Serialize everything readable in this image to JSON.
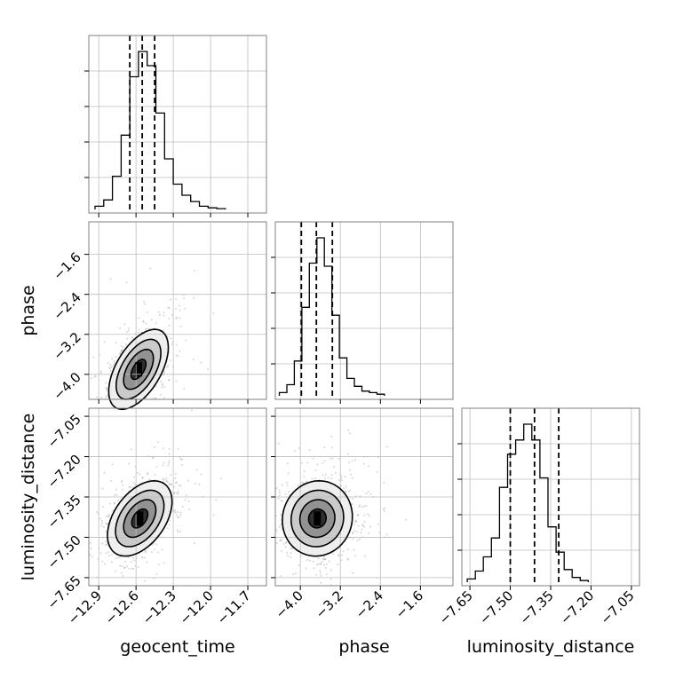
{
  "chart_data": {
    "type": "corner",
    "parameters": [
      "geocent_time",
      "phase",
      "luminosity_distance"
    ],
    "axis_labels": {
      "x": [
        "geocent_time",
        "phase",
        "luminosity_distance"
      ],
      "y": [
        "",
        "phase",
        "luminosity_distance"
      ]
    },
    "ranges": {
      "geocent_time": [
        -12.98,
        -11.55
      ],
      "phase": [
        -4.5,
        -0.95
      ],
      "luminosity_distance": [
        -7.68,
        -7.02
      ]
    },
    "ticks": {
      "geocent_time": {
        "values": [
          -12.9,
          -12.6,
          -12.3,
          -12.0,
          -11.7
        ],
        "labels": [
          "−12.9",
          "−12.6",
          "−12.3",
          "−12.0",
          "−11.7"
        ]
      },
      "phase": {
        "values": [
          -4.0,
          -3.2,
          -2.4,
          -1.6
        ],
        "labels": [
          "−4.0",
          "−3.2",
          "−2.4",
          "−1.6"
        ]
      },
      "luminosity_distance": {
        "values": [
          -7.65,
          -7.5,
          -7.35,
          -7.2,
          -7.05
        ],
        "labels": [
          "−7.65",
          "−7.50",
          "−7.35",
          "−7.20",
          "−7.05"
        ]
      }
    },
    "grid": true,
    "histograms": {
      "geocent_time": {
        "bins": [
          -12.93,
          -12.86,
          -12.79,
          -12.72,
          -12.65,
          -12.58,
          -12.51,
          -12.44,
          -12.37,
          -12.3,
          -12.23,
          -12.16,
          -12.09,
          -12.02,
          -11.95,
          -11.88
        ],
        "counts": [
          2,
          6,
          21,
          47,
          84,
          100,
          91,
          61,
          32,
          16,
          9,
          5,
          2,
          1,
          0.5
        ],
        "quantiles": [
          -12.65,
          -12.55,
          -12.45
        ]
      },
      "phase": {
        "bins": [
          -4.42,
          -4.27,
          -4.12,
          -3.97,
          -3.82,
          -3.67,
          -3.52,
          -3.37,
          -3.22,
          -3.07,
          -2.92,
          -2.77,
          -2.62,
          -2.47,
          -2.32
        ],
        "counts": [
          2,
          7,
          22,
          56,
          84,
          100,
          82,
          51,
          24,
          11,
          6,
          3,
          2,
          1
        ],
        "quantiles": [
          -3.98,
          -3.68,
          -3.36
        ]
      },
      "luminosity_distance": {
        "bins": [
          -7.66,
          -7.63,
          -7.6,
          -7.57,
          -7.54,
          -7.51,
          -7.48,
          -7.45,
          -7.42,
          -7.39,
          -7.36,
          -7.33,
          -7.3,
          -7.27,
          -7.24,
          -7.21
        ],
        "counts": [
          2,
          7,
          16,
          28,
          60,
          81,
          90,
          100,
          90,
          66,
          35,
          19,
          8,
          3,
          1
        ],
        "quantiles": [
          -7.5,
          -7.41,
          -7.32
        ]
      }
    },
    "pairs": [
      {
        "x": "geocent_time",
        "y": "phase",
        "center": [
          -12.58,
          -3.9
        ],
        "sigma": [
          0.12,
          0.4
        ],
        "rho": 0.55
      },
      {
        "x": "geocent_time",
        "y": "luminosity_distance",
        "center": [
          -12.57,
          -7.43
        ],
        "sigma": [
          0.13,
          0.07
        ],
        "rho": 0.45
      },
      {
        "x": "phase",
        "y": "luminosity_distance",
        "center": [
          -3.66,
          -7.43
        ],
        "sigma": [
          0.35,
          0.07
        ],
        "rho": 0.05
      }
    ],
    "contour_levels_sigma": [
      0.5,
      1.0,
      1.5,
      2.0
    ]
  }
}
